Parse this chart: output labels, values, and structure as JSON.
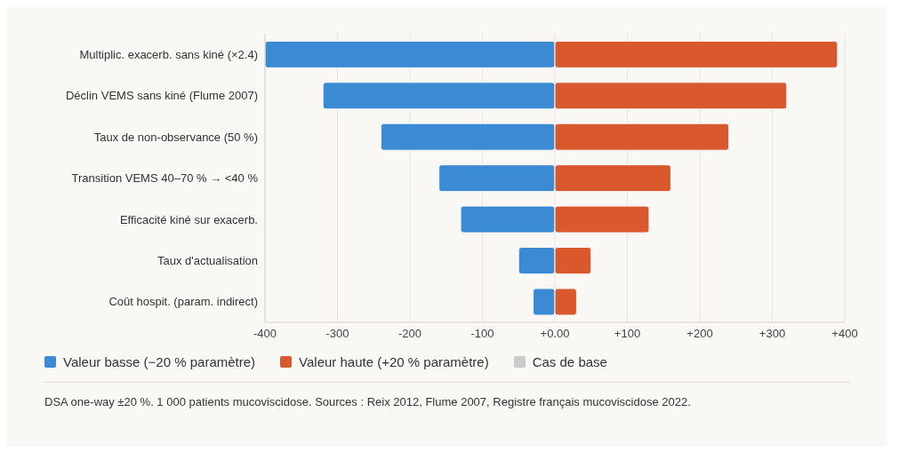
{
  "chart_data": {
    "type": "bar",
    "orientation": "horizontal",
    "stacked": true,
    "categories": [
      "Multiplic. exacerb. sans kiné (×2.4)",
      "Déclin VEMS sans kiné (Flume 2007)",
      "Taux de non-observance (50 %)",
      "Transition VEMS 40–70 % → <40 %",
      "Efficacité kiné sur exacerb.",
      "Taux d'actualisation",
      "Coût hospit. (param. indirect)"
    ],
    "series": [
      {
        "name": "Valeur basse (−20 % paramètre)",
        "color": "#3b8bd4",
        "values": [
          -400,
          -320,
          -240,
          -160,
          -130,
          -50,
          -30
        ]
      },
      {
        "name": "Valeur haute (+20 % paramètre)",
        "color": "#d9582e",
        "values": [
          390,
          320,
          240,
          160,
          130,
          50,
          30
        ]
      },
      {
        "name": "Cas de base",
        "color": "#cccccc",
        "values": [
          null,
          null,
          null,
          null,
          null,
          null,
          null
        ]
      }
    ],
    "xlim": [
      -400,
      400
    ],
    "xticks": [
      -400,
      -300,
      -200,
      -100,
      {
        "value": 0,
        "label": "+0.00"
      },
      {
        "value": 100,
        "label": "+100"
      },
      {
        "value": 200,
        "label": "+200"
      },
      {
        "value": 300,
        "label": "+300"
      },
      {
        "value": 400,
        "label": "+400"
      }
    ],
    "grid": "x",
    "legend": "bottom",
    "annotations": [
      "DSA one-way ±20 %. 1 000 patients mucoviscidose. Sources : Reix 2012, Flume 2007, Registre français mucoviscidose 2022."
    ]
  }
}
